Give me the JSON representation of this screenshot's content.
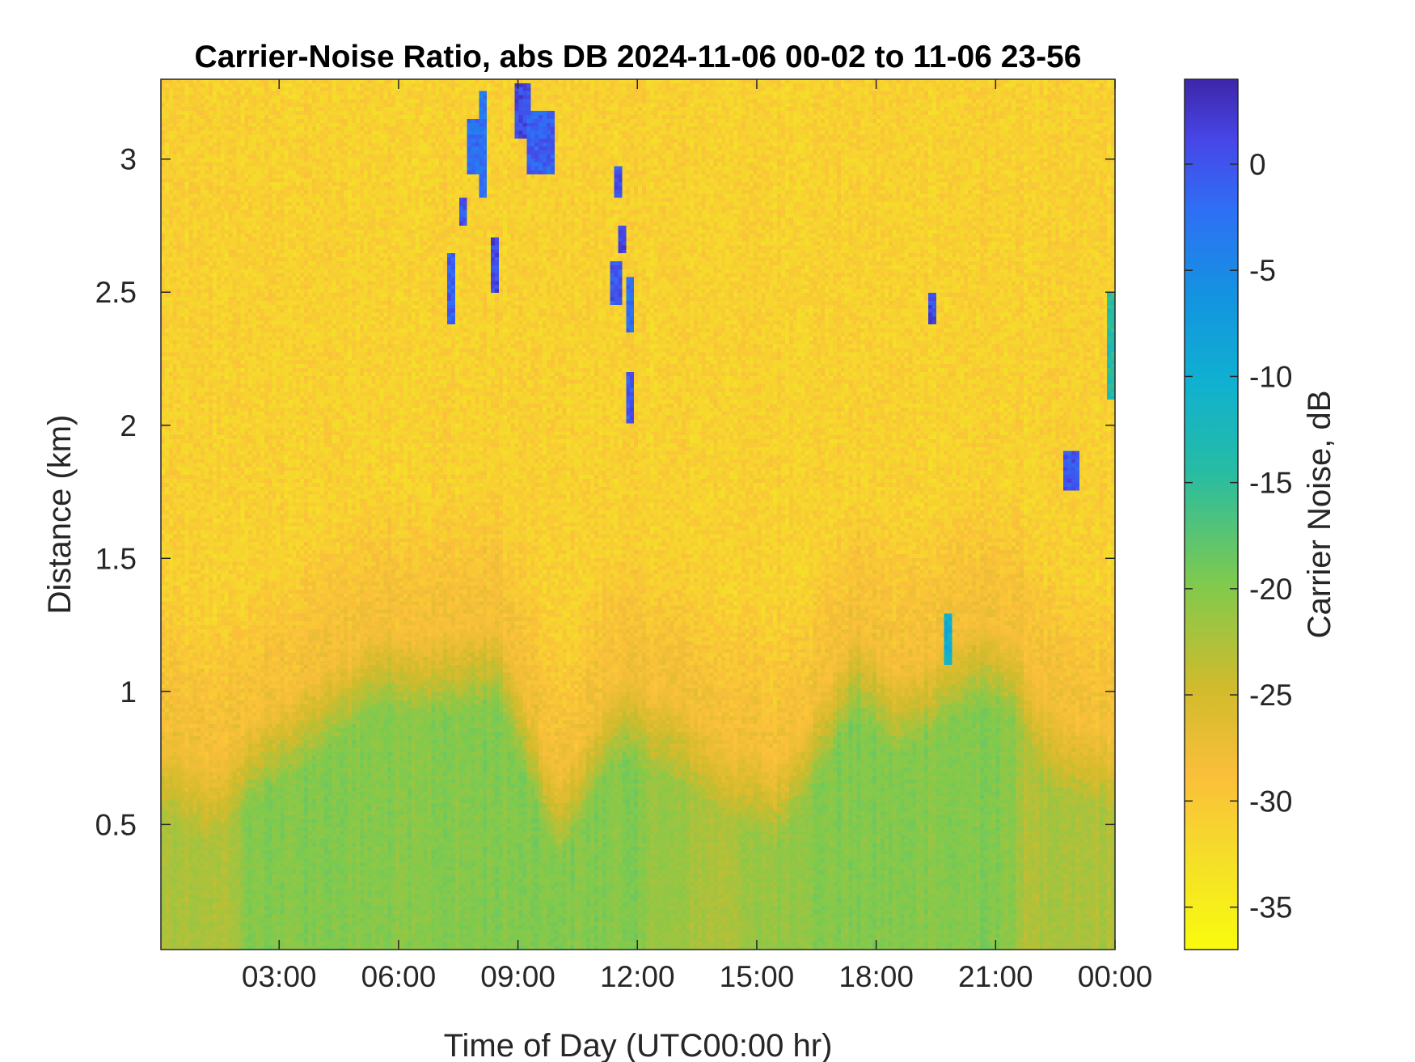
{
  "chart_data": {
    "type": "heatmap",
    "title": "Carrier-Noise Ratio, abs DB 2024-11-06 00-02 to 11-06 23-56",
    "xlabel": "Time of Day (UTC00:00 hr)",
    "ylabel": "Distance (km)",
    "colorbar_label": "Carrier Noise, dB",
    "xlim_hours": [
      0.03,
      24.0
    ],
    "ylim_km": [
      0.03,
      3.3
    ],
    "clim_db": [
      -37,
      4
    ],
    "x_ticks": [
      {
        "value": 3,
        "label": "03:00"
      },
      {
        "value": 6,
        "label": "06:00"
      },
      {
        "value": 9,
        "label": "09:00"
      },
      {
        "value": 12,
        "label": "12:00"
      },
      {
        "value": 15,
        "label": "15:00"
      },
      {
        "value": 18,
        "label": "18:00"
      },
      {
        "value": 21,
        "label": "21:00"
      },
      {
        "value": 24,
        "label": "00:00"
      }
    ],
    "y_ticks": [
      {
        "value": 0.5,
        "label": "0.5"
      },
      {
        "value": 1.0,
        "label": "1"
      },
      {
        "value": 1.5,
        "label": "1.5"
      },
      {
        "value": 2.0,
        "label": "2"
      },
      {
        "value": 2.5,
        "label": "2.5"
      },
      {
        "value": 3.0,
        "label": "3"
      }
    ],
    "colorbar_ticks": [
      {
        "value": 0,
        "label": "0"
      },
      {
        "value": -5,
        "label": "-5"
      },
      {
        "value": -10,
        "label": "-10"
      },
      {
        "value": -15,
        "label": "-15"
      },
      {
        "value": -20,
        "label": "-20"
      },
      {
        "value": -25,
        "label": "-25"
      },
      {
        "value": -30,
        "label": "-30"
      },
      {
        "value": -35,
        "label": "-35"
      }
    ],
    "colormap": "parula",
    "background_db": -31,
    "boundary_layer_top_km": [
      {
        "hour": 0.0,
        "km": 0.9
      },
      {
        "hour": 1.2,
        "km": 0.78
      },
      {
        "hour": 2.5,
        "km": 0.95
      },
      {
        "hour": 4.0,
        "km": 1.1
      },
      {
        "hour": 5.5,
        "km": 1.28
      },
      {
        "hour": 7.0,
        "km": 1.25
      },
      {
        "hour": 8.5,
        "km": 1.3
      },
      {
        "hour": 10.0,
        "km": 0.7
      },
      {
        "hour": 11.5,
        "km": 1.1
      },
      {
        "hour": 13.0,
        "km": 1.0
      },
      {
        "hour": 14.5,
        "km": 0.85
      },
      {
        "hour": 15.5,
        "km": 0.78
      },
      {
        "hour": 16.5,
        "km": 1.0
      },
      {
        "hour": 17.5,
        "km": 1.28
      },
      {
        "hour": 18.5,
        "km": 1.1
      },
      {
        "hour": 19.5,
        "km": 1.2
      },
      {
        "hour": 20.5,
        "km": 1.3
      },
      {
        "hour": 21.5,
        "km": 1.25
      },
      {
        "hour": 22.5,
        "km": 0.95
      },
      {
        "hour": 24.0,
        "km": 0.9
      }
    ],
    "cloud_features": [
      {
        "hour_start": 7.25,
        "hour_end": 7.45,
        "km_bottom": 2.38,
        "km_top": 2.65,
        "db": -1
      },
      {
        "hour_start": 7.5,
        "hour_end": 7.7,
        "km_bottom": 2.75,
        "km_top": 2.85,
        "db": 0
      },
      {
        "hour_start": 7.75,
        "hour_end": 8.0,
        "km_bottom": 2.95,
        "km_top": 3.15,
        "db": -2
      },
      {
        "hour_start": 8.0,
        "hour_end": 8.25,
        "km_bottom": 2.85,
        "km_top": 3.25,
        "db": -3
      },
      {
        "hour_start": 8.35,
        "hour_end": 8.5,
        "km_bottom": 2.5,
        "km_top": 2.7,
        "db": 1
      },
      {
        "hour_start": 8.9,
        "hour_end": 9.3,
        "km_bottom": 3.08,
        "km_top": 3.28,
        "db": 1
      },
      {
        "hour_start": 9.2,
        "hour_end": 9.9,
        "km_bottom": 2.95,
        "km_top": 3.18,
        "db": -1
      },
      {
        "hour_start": 11.45,
        "hour_end": 11.65,
        "km_bottom": 2.85,
        "km_top": 2.98,
        "db": 0
      },
      {
        "hour_start": 11.5,
        "hour_end": 11.7,
        "km_bottom": 2.65,
        "km_top": 2.75,
        "db": 1
      },
      {
        "hour_start": 11.35,
        "hour_end": 11.65,
        "km_bottom": 2.45,
        "km_top": 2.62,
        "db": 0
      },
      {
        "hour_start": 11.75,
        "hour_end": 11.9,
        "km_bottom": 2.35,
        "km_top": 2.55,
        "db": -2
      },
      {
        "hour_start": 11.7,
        "hour_end": 11.95,
        "km_bottom": 2.0,
        "km_top": 2.2,
        "db": 0
      },
      {
        "hour_start": 19.35,
        "hour_end": 19.5,
        "km_bottom": 2.38,
        "km_top": 2.5,
        "db": 1
      },
      {
        "hour_start": 22.7,
        "hour_end": 23.1,
        "km_bottom": 1.75,
        "km_top": 1.9,
        "db": 0
      },
      {
        "hour_start": 19.7,
        "hour_end": 19.9,
        "km_bottom": 1.1,
        "km_top": 1.3,
        "db": -10
      },
      {
        "hour_start": 23.8,
        "hour_end": 24.0,
        "km_bottom": 2.1,
        "km_top": 2.5,
        "db": -14
      }
    ]
  }
}
